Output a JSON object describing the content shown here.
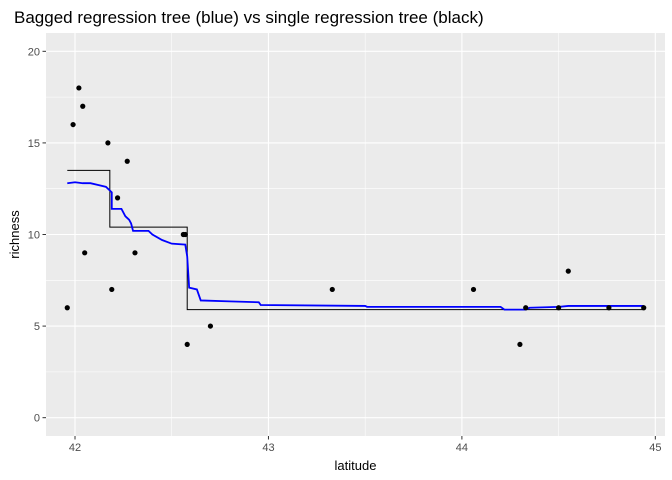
{
  "chart_data": {
    "type": "scatter",
    "title": "Bagged regression tree (blue) vs single regression tree (black)",
    "xlabel": "latitude",
    "ylabel": "richness",
    "xlim": [
      41.85,
      45.05
    ],
    "ylim": [
      -1.0,
      21.0
    ],
    "xticks": [
      42,
      43,
      44,
      45
    ],
    "yticks": [
      0,
      5,
      10,
      15,
      20
    ],
    "xtick_labels": [
      "42",
      "43",
      "44",
      "45"
    ],
    "ytick_labels": [
      "0",
      "5",
      "10",
      "15",
      "20"
    ],
    "grid": true,
    "background": "#ebebeb",
    "grid_major_color": "#ffffff",
    "points": [
      {
        "x": 41.96,
        "y": 6
      },
      {
        "x": 41.99,
        "y": 16
      },
      {
        "x": 42.02,
        "y": 18
      },
      {
        "x": 42.04,
        "y": 17
      },
      {
        "x": 42.05,
        "y": 9
      },
      {
        "x": 42.17,
        "y": 15
      },
      {
        "x": 42.19,
        "y": 7
      },
      {
        "x": 42.22,
        "y": 12
      },
      {
        "x": 42.27,
        "y": 14
      },
      {
        "x": 42.31,
        "y": 9
      },
      {
        "x": 42.56,
        "y": 10
      },
      {
        "x": 42.57,
        "y": 10
      },
      {
        "x": 42.58,
        "y": 4
      },
      {
        "x": 42.7,
        "y": 5
      },
      {
        "x": 43.33,
        "y": 7
      },
      {
        "x": 44.06,
        "y": 7
      },
      {
        "x": 44.3,
        "y": 4
      },
      {
        "x": 44.33,
        "y": 6
      },
      {
        "x": 44.5,
        "y": 6
      },
      {
        "x": 44.55,
        "y": 8
      },
      {
        "x": 44.76,
        "y": 6
      },
      {
        "x": 44.94,
        "y": 6
      }
    ],
    "series": [
      {
        "name": "single regression tree",
        "color": "#000000",
        "step": [
          {
            "x": 41.96,
            "y": 13.5
          },
          {
            "x": 42.18,
            "y": 13.5
          },
          {
            "x": 42.18,
            "y": 10.4
          },
          {
            "x": 42.58,
            "y": 10.4
          },
          {
            "x": 42.58,
            "y": 5.9
          },
          {
            "x": 44.94,
            "y": 5.9
          }
        ]
      },
      {
        "name": "bagged regression tree",
        "color": "#0000ff",
        "step": [
          {
            "x": 41.96,
            "y": 12.8
          },
          {
            "x": 42.0,
            "y": 12.85
          },
          {
            "x": 42.04,
            "y": 12.8
          },
          {
            "x": 42.08,
            "y": 12.8
          },
          {
            "x": 42.12,
            "y": 12.7
          },
          {
            "x": 42.16,
            "y": 12.6
          },
          {
            "x": 42.19,
            "y": 12.3
          },
          {
            "x": 42.19,
            "y": 11.4
          },
          {
            "x": 42.24,
            "y": 11.4
          },
          {
            "x": 42.26,
            "y": 11.0
          },
          {
            "x": 42.28,
            "y": 10.8
          },
          {
            "x": 42.29,
            "y": 10.6
          },
          {
            "x": 42.3,
            "y": 10.2
          },
          {
            "x": 42.38,
            "y": 10.2
          },
          {
            "x": 42.4,
            "y": 10.0
          },
          {
            "x": 42.45,
            "y": 9.7
          },
          {
            "x": 42.5,
            "y": 9.5
          },
          {
            "x": 42.57,
            "y": 9.45
          },
          {
            "x": 42.58,
            "y": 8.8
          },
          {
            "x": 42.59,
            "y": 7.1
          },
          {
            "x": 42.63,
            "y": 7.0
          },
          {
            "x": 42.65,
            "y": 6.4
          },
          {
            "x": 42.8,
            "y": 6.35
          },
          {
            "x": 42.95,
            "y": 6.3
          },
          {
            "x": 42.96,
            "y": 6.15
          },
          {
            "x": 43.5,
            "y": 6.1
          },
          {
            "x": 43.51,
            "y": 6.05
          },
          {
            "x": 44.2,
            "y": 6.05
          },
          {
            "x": 44.22,
            "y": 5.9
          },
          {
            "x": 44.33,
            "y": 5.9
          },
          {
            "x": 44.35,
            "y": 6.0
          },
          {
            "x": 44.5,
            "y": 6.05
          },
          {
            "x": 44.55,
            "y": 6.1
          },
          {
            "x": 44.94,
            "y": 6.1
          }
        ]
      }
    ]
  }
}
